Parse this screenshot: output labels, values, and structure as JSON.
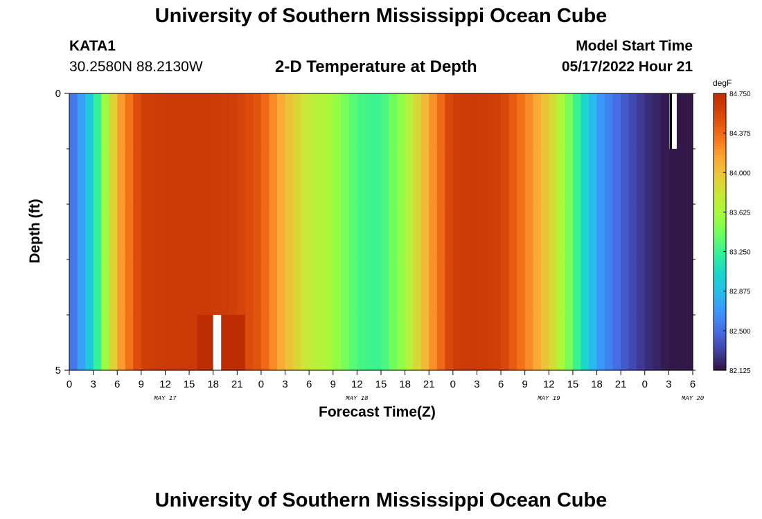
{
  "header": {
    "title": "University of Southern Mississippi Ocean Cube",
    "station_id": "KATA1",
    "station_coords": "30.2580N  88.2130W",
    "subtitle": "2-D Temperature at Depth",
    "model_start_label": "Model Start Time",
    "model_start_value": "05/17/2022 Hour 21"
  },
  "footer": {
    "title": "University of Southern Mississippi Ocean Cube"
  },
  "chart_data": {
    "type": "heatmap",
    "title": "2-D Temperature at Depth",
    "xlabel": "Forecast Time(Z)",
    "ylabel": "Depth (ft)",
    "x_ticks": [
      "0",
      "3",
      "6",
      "9",
      "12",
      "15",
      "18",
      "21",
      "0",
      "3",
      "6",
      "9",
      "12",
      "15",
      "18",
      "21",
      "0",
      "3",
      "6",
      "9",
      "12",
      "15",
      "18",
      "21",
      "0",
      "3",
      "6"
    ],
    "day_labels": [
      {
        "label": "MAY 17",
        "hour": 12
      },
      {
        "label": "MAY 18",
        "hour": 36
      },
      {
        "label": "MAY 19",
        "hour": 60
      },
      {
        "label": "MAY 20",
        "hour": 78
      }
    ],
    "xlim": [
      0,
      78
    ],
    "y_ticks": [
      "0",
      "5"
    ],
    "ylim": [
      0,
      5
    ],
    "depth_bins": 5,
    "time_step_hours": 1,
    "colorbar": {
      "unit": "degF",
      "min": 82.125,
      "max": 84.75,
      "tick_labels": [
        "84.750",
        "84.375",
        "84.000",
        "83.625",
        "83.250",
        "82.875",
        "82.500",
        "82.125"
      ]
    },
    "profile_hours": [
      0,
      3,
      6,
      9,
      12,
      15,
      18,
      21,
      24,
      27,
      30,
      33,
      36,
      39,
      42,
      45,
      48,
      51,
      54,
      57,
      60,
      63,
      66,
      69,
      72,
      75,
      78
    ],
    "profile_degF": [
      82.45,
      83.05,
      84.1,
      84.6,
      84.65,
      84.65,
      84.65,
      84.6,
      84.45,
      84.05,
      83.75,
      83.6,
      83.3,
      83.25,
      83.6,
      84.15,
      84.62,
      84.65,
      84.6,
      84.3,
      83.95,
      83.35,
      82.75,
      82.45,
      82.25,
      82.15,
      82.15
    ],
    "missing_cells": [
      {
        "hour": 18,
        "depth_bin": 4,
        "color": "#ffffff"
      },
      {
        "hour": 75,
        "depth_bin": 0,
        "color": "#000000"
      }
    ]
  }
}
